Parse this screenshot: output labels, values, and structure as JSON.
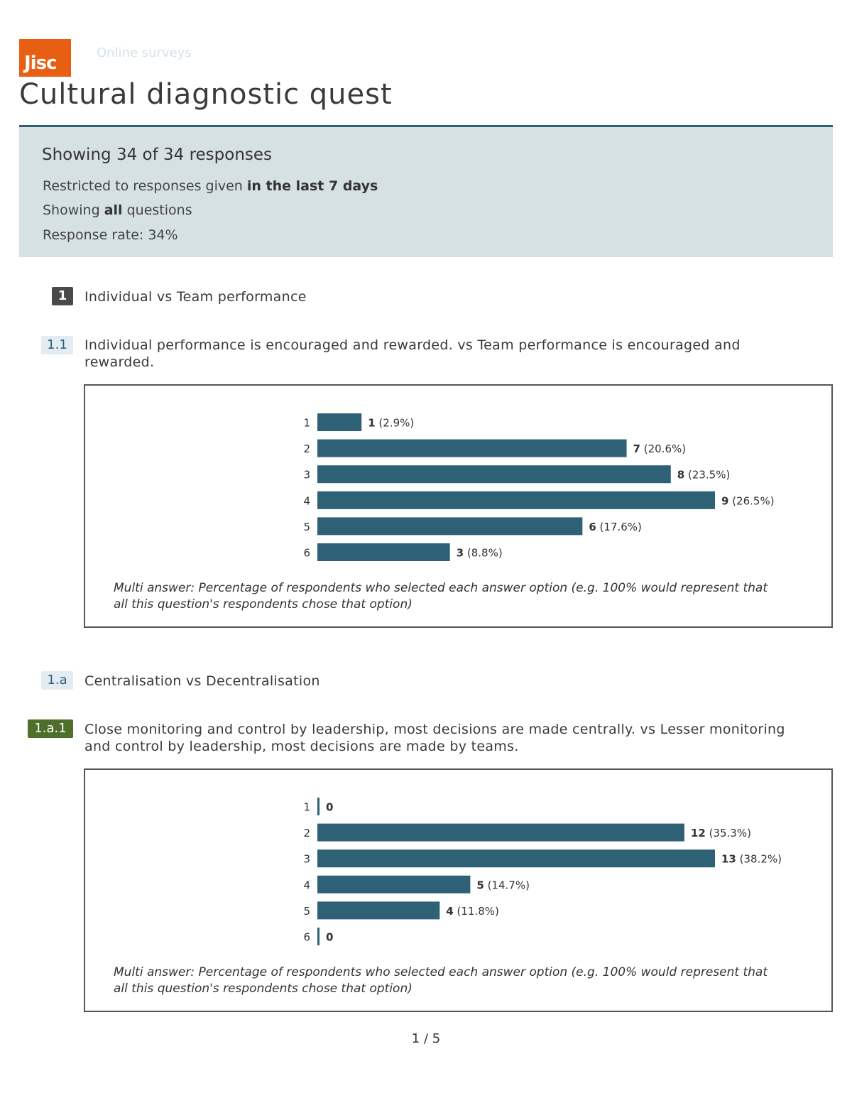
{
  "brand": {
    "logo_text": "Jisc",
    "site_name": "Online surveys",
    "accent": "#e85e13"
  },
  "document": {
    "title": "Cultural diagnostic quest"
  },
  "summary": {
    "showing": "Showing 34 of 34 responses",
    "restricted_prefix": "Restricted to responses given",
    "restricted_value": "in the last 7 days",
    "showing_q_prefix": "Showing",
    "showing_q_value": "all",
    "showing_q_suffix": "questions",
    "response_rate": "Response rate: 34%"
  },
  "sections": [
    {
      "number": "1",
      "title": "Individual vs Team performance"
    },
    {
      "number": "1.a",
      "title": "Centralisation vs Decentralisation"
    }
  ],
  "questions": [
    {
      "number": "1.1",
      "text": "Individual performance is encouraged and rewarded. vs Team performance is encouraged and rewarded.",
      "note": "Multi answer: Percentage of respondents who selected each answer option (e.g. 100% would represent that all this question's respondents chose that option)"
    },
    {
      "number": "1.a.1",
      "text": "Close monitoring and control by leadership, most decisions are made centrally. vs Lesser monitoring and control by leadership, most decisions are made by teams.",
      "note": "Multi answer: Percentage of respondents who selected each answer option (e.g. 100% would represent that all this question's respondents chose that option)"
    }
  ],
  "chart_data": [
    {
      "type": "bar",
      "orientation": "horizontal",
      "categories": [
        "1",
        "2",
        "3",
        "4",
        "5",
        "6"
      ],
      "values": [
        1,
        7,
        8,
        9,
        6,
        3
      ],
      "percent_labels": [
        "(2.9%)",
        "(20.6%)",
        "(23.5%)",
        "(26.5%)",
        "(17.6%)",
        "(8.8%)"
      ],
      "bar_color": "#2e6076"
    },
    {
      "type": "bar",
      "orientation": "horizontal",
      "categories": [
        "1",
        "2",
        "3",
        "4",
        "5",
        "6"
      ],
      "values": [
        0,
        12,
        13,
        5,
        4,
        0
      ],
      "percent_labels": [
        "",
        "(35.3%)",
        "(38.2%)",
        "(14.7%)",
        "(11.8%)",
        ""
      ],
      "bar_color": "#2e6076"
    }
  ],
  "footer": {
    "page": "1 / 5"
  }
}
